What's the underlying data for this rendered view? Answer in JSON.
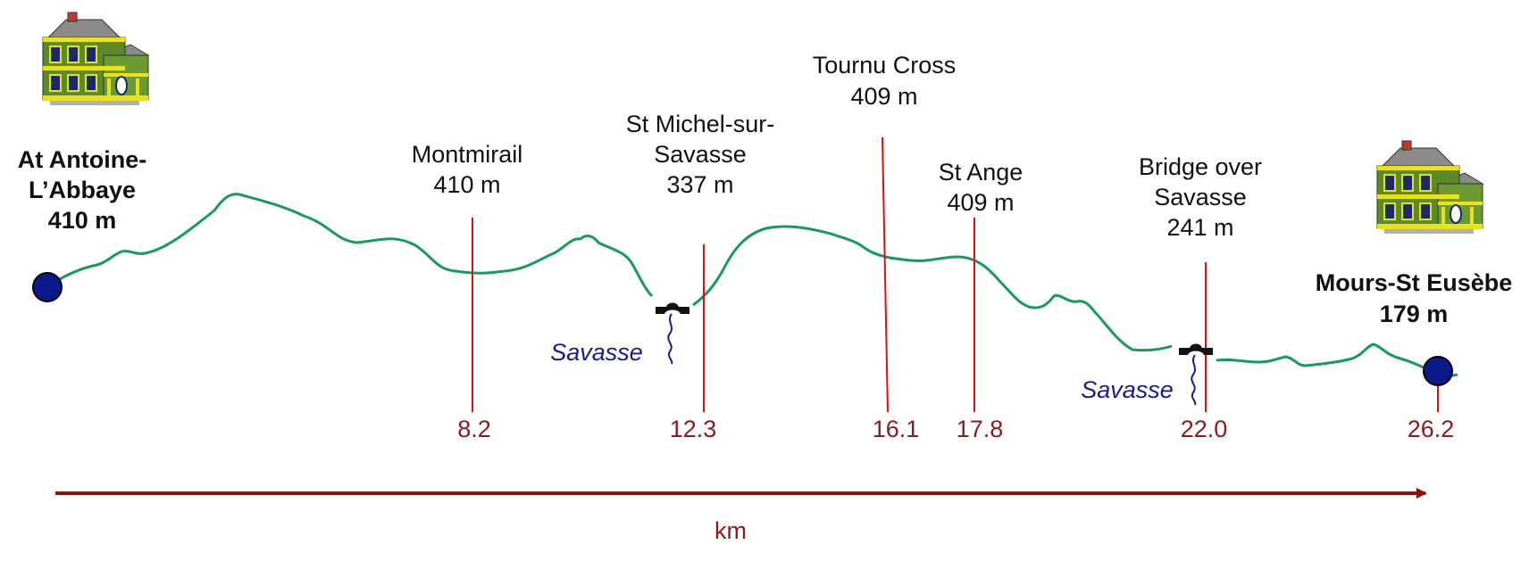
{
  "colors": {
    "profile": "#1a9a5a",
    "marker_line": "#e01010",
    "km_text": "#8b1a1a",
    "axis": "#8b1010",
    "river": "#1a1a8b",
    "endpoint": "#0a1a8a"
  },
  "start": {
    "name_line1": "At Antoine-",
    "name_line2": "L’Abbaye",
    "elevation": "410 m",
    "icon": "house-icon"
  },
  "end": {
    "name": "Mours-St Eusèbe",
    "elevation": "179 m",
    "icon": "house-icon"
  },
  "waypoints": [
    {
      "id": "montmirail",
      "lines": [
        "Montmirail",
        "410 m"
      ],
      "km": "8.2"
    },
    {
      "id": "st-michel",
      "lines": [
        "St Michel-sur-",
        "Savasse",
        "337 m"
      ],
      "km": "12.3"
    },
    {
      "id": "tournu-cross",
      "lines": [
        "Tournu Cross",
        "409 m"
      ],
      "km": "16.1"
    },
    {
      "id": "st-ange",
      "lines": [
        "St Ange",
        "409 m"
      ],
      "km": "17.8"
    },
    {
      "id": "bridge-over-savasse",
      "lines": [
        "Bridge over",
        "Savasse",
        "241 m"
      ],
      "km": "22.0"
    },
    {
      "id": "mours",
      "lines": [],
      "km": "26.2"
    }
  ],
  "rivers": [
    {
      "name": "Savasse"
    },
    {
      "name": "Savasse"
    }
  ],
  "axis": {
    "label": "km"
  }
}
